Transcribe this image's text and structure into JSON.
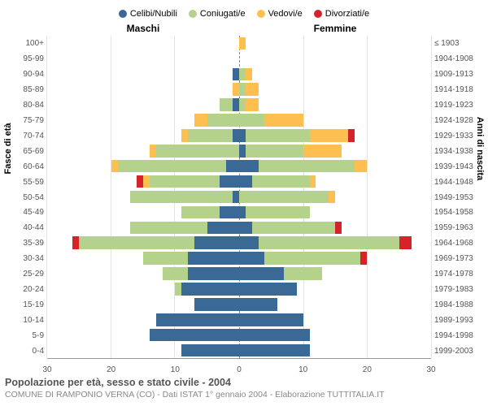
{
  "type": "population-pyramid",
  "legend": [
    {
      "label": "Celibi/Nubili",
      "color": "#3b6996"
    },
    {
      "label": "Coniugati/e",
      "color": "#b4d28c"
    },
    {
      "label": "Vedovi/e",
      "color": "#fdbf4f"
    },
    {
      "label": "Divorziati/e",
      "color": "#d6232a"
    }
  ],
  "headers": {
    "male": "Maschi",
    "female": "Femmine"
  },
  "axis_labels": {
    "left": "Fasce di età",
    "right": "Anni di nascita"
  },
  "colors": {
    "grid": "#e4e4e4",
    "center": "#888888",
    "bg": "#ffffff",
    "label_text": "#555555"
  },
  "font": {
    "legend_pt": 11,
    "labels_pt": 10,
    "title_pt": 12.5
  },
  "x": {
    "max": 30,
    "ticks": [
      30,
      20,
      10,
      0,
      10,
      20,
      30
    ]
  },
  "age_groups": [
    "100+",
    "95-99",
    "90-94",
    "85-89",
    "80-84",
    "75-79",
    "70-74",
    "65-69",
    "60-64",
    "55-59",
    "50-54",
    "45-49",
    "40-44",
    "35-39",
    "30-34",
    "25-29",
    "20-24",
    "15-19",
    "10-14",
    "5-9",
    "0-4"
  ],
  "birth_years": [
    "≤ 1903",
    "1904-1908",
    "1909-1913",
    "1914-1918",
    "1919-1923",
    "1924-1928",
    "1929-1933",
    "1934-1938",
    "1939-1943",
    "1944-1948",
    "1949-1953",
    "1954-1958",
    "1959-1963",
    "1964-1968",
    "1969-1973",
    "1974-1978",
    "1979-1983",
    "1984-1988",
    "1989-1993",
    "1994-1998",
    "1999-2003"
  ],
  "male": [
    [
      0,
      0,
      0,
      0
    ],
    [
      0,
      0,
      0,
      0
    ],
    [
      1,
      0,
      0,
      0
    ],
    [
      0,
      0,
      1,
      0
    ],
    [
      1,
      2,
      0,
      0
    ],
    [
      0,
      5,
      2,
      0
    ],
    [
      1,
      7,
      1,
      0
    ],
    [
      0,
      13,
      1,
      0
    ],
    [
      2,
      17,
      1,
      0
    ],
    [
      3,
      11,
      1,
      1
    ],
    [
      1,
      16,
      0,
      0
    ],
    [
      3,
      6,
      0,
      0
    ],
    [
      5,
      12,
      0,
      0
    ],
    [
      7,
      18,
      0,
      1
    ],
    [
      8,
      7,
      0,
      0
    ],
    [
      8,
      4,
      0,
      0
    ],
    [
      9,
      1,
      0,
      0
    ],
    [
      7,
      0,
      0,
      0
    ],
    [
      13,
      0,
      0,
      0
    ],
    [
      14,
      0,
      0,
      0
    ],
    [
      9,
      0,
      0,
      0
    ]
  ],
  "female": [
    [
      0,
      0,
      1,
      0
    ],
    [
      0,
      0,
      0,
      0
    ],
    [
      0,
      1,
      1,
      0
    ],
    [
      0,
      1,
      2,
      0
    ],
    [
      0,
      1,
      2,
      0
    ],
    [
      0,
      4,
      6,
      0
    ],
    [
      1,
      10,
      6,
      1
    ],
    [
      1,
      9,
      6,
      0
    ],
    [
      3,
      15,
      2,
      0
    ],
    [
      2,
      9,
      1,
      0
    ],
    [
      0,
      14,
      1,
      0
    ],
    [
      1,
      10,
      0,
      0
    ],
    [
      2,
      13,
      0,
      1
    ],
    [
      3,
      22,
      0,
      2
    ],
    [
      4,
      15,
      0,
      1
    ],
    [
      7,
      6,
      0,
      0
    ],
    [
      9,
      0,
      0,
      0
    ],
    [
      6,
      0,
      0,
      0
    ],
    [
      10,
      0,
      0,
      0
    ],
    [
      11,
      0,
      0,
      0
    ],
    [
      11,
      0,
      0,
      0
    ]
  ],
  "footer": {
    "title": "Popolazione per età, sesso e stato civile - 2004",
    "subtitle": "COMUNE DI RAMPONIO VERNA (CO) - Dati ISTAT 1° gennaio 2004 - Elaborazione TUTTITALIA.IT"
  }
}
